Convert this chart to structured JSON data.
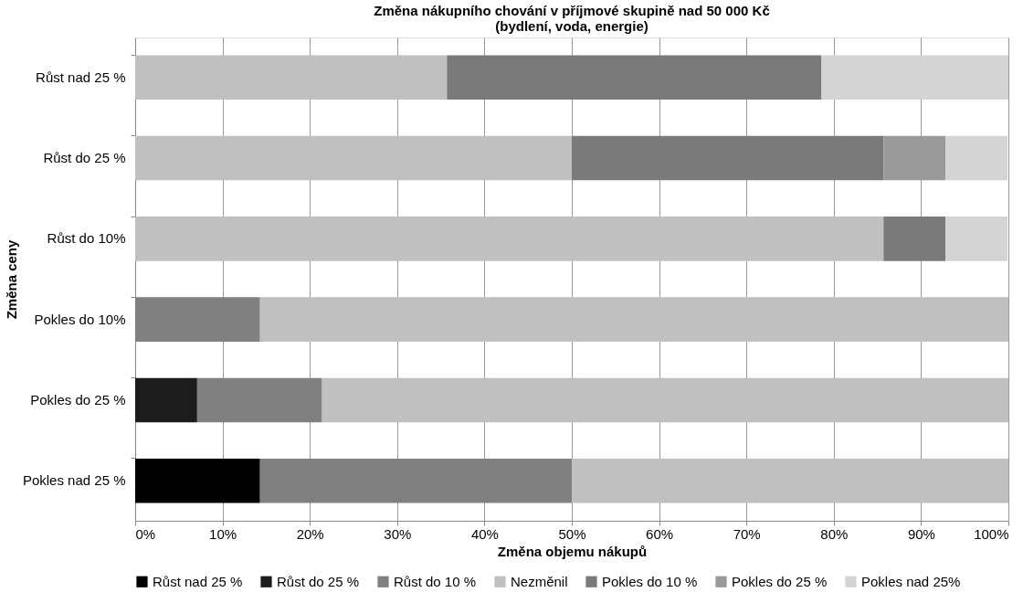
{
  "chart_data": {
    "type": "bar",
    "orientation": "horizontal",
    "stacked": true,
    "title": [
      "Změna nákupního chování v příjmové skupině nad 50 000 Kč",
      "(bydlení, voda, energie)"
    ],
    "xlabel": "Změna objemu nákupů",
    "ylabel": "Změna ceny",
    "categories": [
      "Růst nad 25 %",
      "Růst do 25 %",
      "Růst do 10%",
      "Pokles do 10%",
      "Pokles do 25 %",
      "Pokles nad 25 %"
    ],
    "series": [
      {
        "name": "Růst nad 25 %",
        "color": "#000000",
        "values": [
          null,
          null,
          null,
          null,
          null,
          14.3
        ]
      },
      {
        "name": "Růst do 25 %",
        "color": "#1c1c1c",
        "values": [
          null,
          null,
          null,
          null,
          7.1,
          null
        ]
      },
      {
        "name": "Růst do 10 %",
        "color": "#808080",
        "values": [
          null,
          null,
          null,
          14.3,
          14.3,
          35.7
        ]
      },
      {
        "name": "Nezměnil",
        "color": "#c0c0c0",
        "values": [
          35.7,
          50.0,
          85.7,
          85.7,
          78.6,
          50.0
        ]
      },
      {
        "name": "Pokles do 10 %",
        "color": "#7a7a7a",
        "values": [
          42.9,
          35.7,
          7.1,
          null,
          null,
          null
        ]
      },
      {
        "name": "Pokles do 25 %",
        "color": "#9a9a9a",
        "values": [
          null,
          7.1,
          null,
          null,
          null,
          null
        ]
      },
      {
        "name": "Pokles nad 25%",
        "color": "#d4d4d4",
        "values": [
          21.4,
          7.1,
          7.1,
          null,
          null,
          null
        ]
      }
    ],
    "xlim": [
      0,
      100
    ],
    "xticks": [
      {
        "value": 0,
        "label": "0%"
      },
      {
        "value": 10,
        "label": "10%"
      },
      {
        "value": 20,
        "label": "20%"
      },
      {
        "value": 30,
        "label": "30%"
      },
      {
        "value": 40,
        "label": "40%"
      },
      {
        "value": 50,
        "label": "50%"
      },
      {
        "value": 60,
        "label": "60%"
      },
      {
        "value": 70,
        "label": "70%"
      },
      {
        "value": 80,
        "label": "80%"
      },
      {
        "value": 90,
        "label": "90%"
      },
      {
        "value": 100,
        "label": "100%"
      }
    ],
    "grid": "x",
    "legend": "bottom"
  }
}
